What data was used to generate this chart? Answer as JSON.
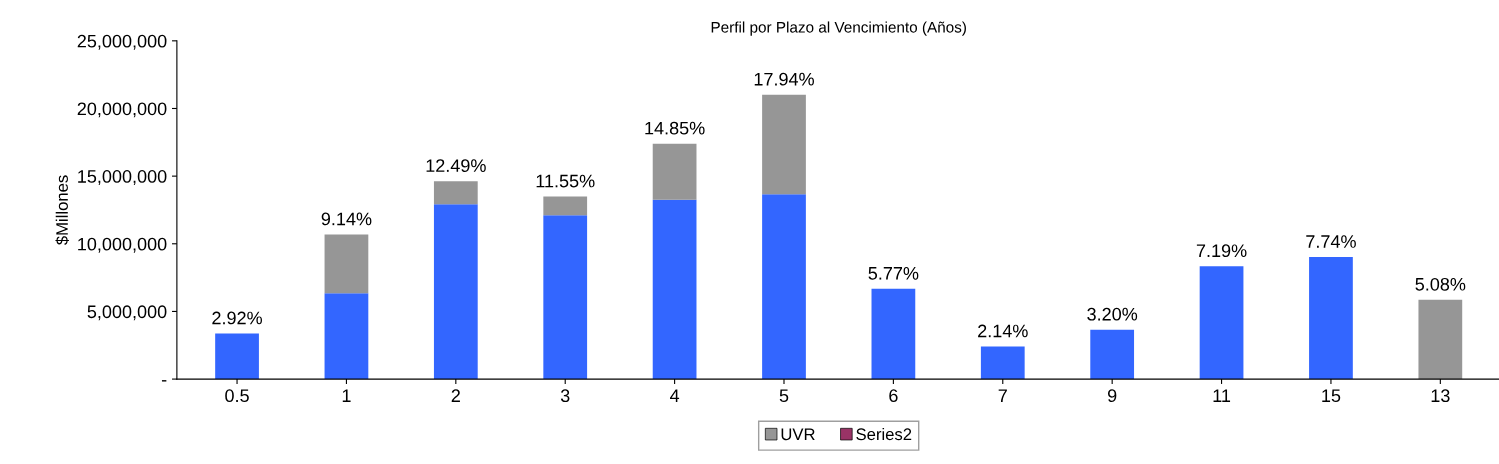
{
  "chart_data": {
    "type": "bar",
    "title": "Perfil por Plazo al Vencimiento (Años)",
    "ylabel": "$Millones",
    "categories": [
      "0.5",
      "1",
      "2",
      "3",
      "4",
      "5",
      "6",
      "7",
      "9",
      "11",
      "15",
      "13"
    ],
    "stacked": true,
    "series": [
      {
        "color": "#3366ff",
        "values": [
          3370000,
          6350000,
          12920000,
          12110000,
          13250000,
          13670000,
          6670000,
          2410000,
          3650000,
          8340000,
          9020000,
          null
        ]
      },
      {
        "name": "UVR",
        "color": "#969696",
        "values": [
          null,
          4340000,
          1710000,
          1380000,
          4150000,
          7350000,
          null,
          null,
          null,
          null,
          null,
          5860000
        ]
      },
      {
        "name": "Series2",
        "color": "#993366",
        "values": [
          null,
          null,
          null,
          null,
          null,
          null,
          null,
          null,
          null,
          null,
          null,
          null
        ]
      }
    ],
    "annotations": [
      {
        "text": "2.92%",
        "x": "0.5",
        "y": 3370000
      },
      {
        "text": "9.14%",
        "x": "1",
        "y": 10690000
      },
      {
        "text": "12.49%",
        "x": "2",
        "y": 14630000
      },
      {
        "text": "11.55%",
        "x": "3",
        "y": 13490000
      },
      {
        "text": "14.85%",
        "x": "4",
        "y": 17400000
      },
      {
        "text": "17.94%",
        "x": "5",
        "y": 21020000
      },
      {
        "text": "5.77%",
        "x": "6",
        "y": 6670000
      },
      {
        "text": "2.14%",
        "x": "7",
        "y": 2410000
      },
      {
        "text": "3.20%",
        "x": "9",
        "y": 3650000
      },
      {
        "text": "7.19%",
        "x": "11",
        "y": 8340000
      },
      {
        "text": "7.74%",
        "x": "15",
        "y": 9020000
      },
      {
        "text": "5.08%",
        "x": "13",
        "y": 5860000
      }
    ],
    "ylim": [
      0,
      25000000
    ],
    "yticks": [
      {
        "value": 0,
        "label": "-"
      },
      {
        "value": 5000000,
        "label": "5,000,000"
      },
      {
        "value": 10000000,
        "label": "10,000,000"
      },
      {
        "value": 15000000,
        "label": "15,000,000"
      },
      {
        "value": 20000000,
        "label": "20,000,000"
      },
      {
        "value": 25000000,
        "label": "25,000,000"
      }
    ],
    "grid": false,
    "legend": "bottom"
  }
}
